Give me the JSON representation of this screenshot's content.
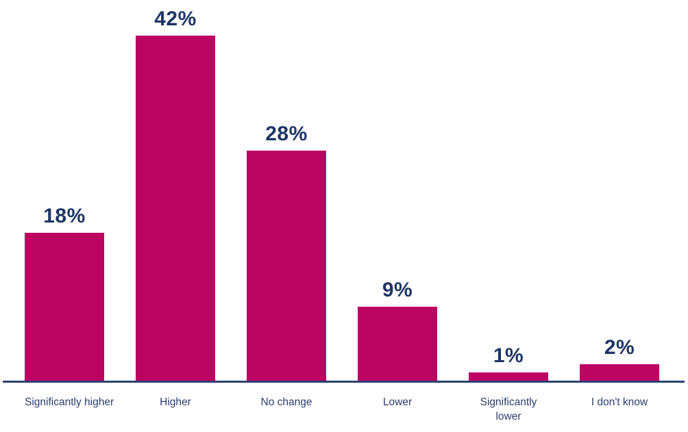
{
  "chart_data": {
    "type": "bar",
    "categories": [
      "Significantly higher",
      "Higher",
      "No change",
      "Lower",
      "Significantly\nlower",
      "I don't know"
    ],
    "values": [
      18,
      42,
      28,
      9,
      1,
      2
    ],
    "value_labels": [
      "18%",
      "42%",
      "28%",
      "9%",
      "1%",
      "2%"
    ],
    "title": "",
    "xlabel": "",
    "ylabel": "",
    "ylim": [
      0,
      45
    ],
    "grid": false,
    "legend": false,
    "data_labels_position": "above-bars",
    "colors": {
      "bar": "#bc0463",
      "value_label": "#1e3564",
      "category_label": "#293e6d",
      "axis_line": "#2b4170",
      "background": "#ffffff"
    }
  }
}
